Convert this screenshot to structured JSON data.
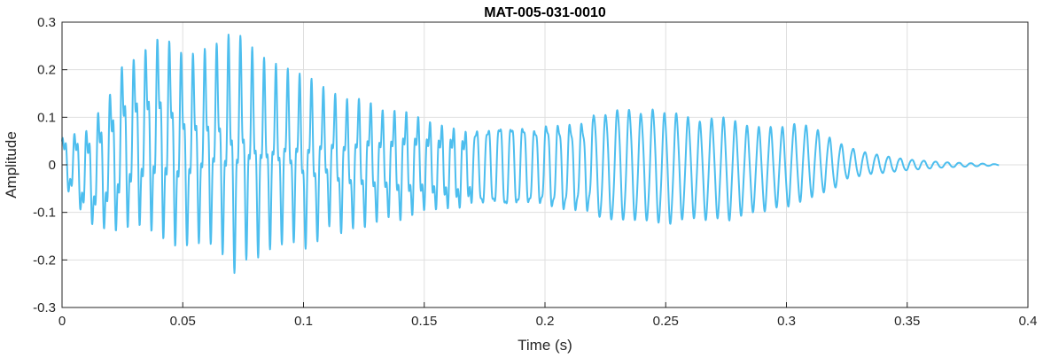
{
  "chart_data": {
    "type": "line",
    "title": "MAT-005-031-0010",
    "xlabel": "Time (s)",
    "ylabel": "Amplitude",
    "xlim": [
      0,
      0.4
    ],
    "ylim": [
      -0.3,
      0.3
    ],
    "grid": true,
    "xticks": [
      0,
      0.05,
      0.1,
      0.15,
      0.2,
      0.25,
      0.3,
      0.35,
      0.4
    ],
    "xtick_labels": [
      "0",
      "0.05",
      "0.1",
      "0.15",
      "0.2",
      "0.25",
      "0.3",
      "0.35",
      "0.4"
    ],
    "yticks": [
      -0.3,
      -0.2,
      -0.1,
      0,
      0.1,
      0.2,
      0.3
    ],
    "ytick_labels": [
      "-0.3",
      "-0.2",
      "-0.1",
      "0",
      "0.1",
      "0.2",
      "0.3"
    ],
    "series": [
      {
        "color": "#4dbeee",
        "x": [
          0,
          0.005,
          0.01,
          0.015,
          0.02,
          0.025,
          0.03,
          0.035,
          0.04,
          0.045,
          0.05,
          0.055,
          0.06,
          0.065,
          0.07,
          0.075,
          0.08,
          0.085,
          0.09,
          0.095,
          0.1,
          0.105,
          0.11,
          0.115,
          0.12,
          0.125,
          0.13,
          0.135,
          0.14,
          0.145,
          0.15,
          0.155,
          0.16,
          0.165,
          0.17,
          0.175,
          0.18,
          0.185,
          0.19,
          0.195,
          0.2,
          0.205,
          0.21,
          0.215,
          0.22,
          0.225,
          0.23,
          0.235,
          0.24,
          0.245,
          0.25,
          0.255,
          0.26,
          0.265,
          0.27,
          0.275,
          0.28,
          0.285,
          0.29,
          0.295,
          0.3,
          0.305,
          0.31,
          0.315,
          0.32,
          0.325,
          0.33,
          0.335,
          0.34,
          0.345,
          0.35,
          0.355,
          0.36,
          0.365,
          0.37,
          0.375,
          0.38,
          0.385,
          0.388
        ],
        "upper": [
          0.07,
          0.08,
          0.09,
          0.13,
          0.17,
          0.23,
          0.24,
          0.26,
          0.28,
          0.27,
          0.24,
          0.24,
          0.25,
          0.26,
          0.28,
          0.27,
          0.24,
          0.22,
          0.21,
          0.2,
          0.19,
          0.18,
          0.16,
          0.15,
          0.14,
          0.15,
          0.13,
          0.12,
          0.13,
          0.12,
          0.11,
          0.1,
          0.1,
          0.09,
          0.09,
          0.09,
          0.1,
          0.1,
          0.1,
          0.09,
          0.1,
          0.1,
          0.1,
          0.1,
          0.11,
          0.11,
          0.12,
          0.12,
          0.11,
          0.12,
          0.11,
          0.11,
          0.1,
          0.09,
          0.1,
          0.1,
          0.09,
          0.08,
          0.08,
          0.08,
          0.08,
          0.09,
          0.08,
          0.07,
          0.05,
          0.04,
          0.03,
          0.025,
          0.02,
          0.016,
          0.012,
          0.01,
          0.008,
          0.006,
          0.005,
          0.004,
          0.003,
          0.002,
          0.001
        ],
        "lower": [
          -0.06,
          -0.08,
          -0.14,
          -0.15,
          -0.16,
          -0.16,
          -0.14,
          -0.15,
          -0.16,
          -0.18,
          -0.18,
          -0.17,
          -0.17,
          -0.17,
          -0.24,
          -0.2,
          -0.2,
          -0.18,
          -0.17,
          -0.16,
          -0.18,
          -0.17,
          -0.13,
          -0.15,
          -0.14,
          -0.14,
          -0.13,
          -0.12,
          -0.13,
          -0.12,
          -0.11,
          -0.11,
          -0.11,
          -0.11,
          -0.1,
          -0.1,
          -0.1,
          -0.11,
          -0.1,
          -0.1,
          -0.1,
          -0.11,
          -0.11,
          -0.11,
          -0.11,
          -0.12,
          -0.12,
          -0.12,
          -0.12,
          -0.12,
          -0.13,
          -0.12,
          -0.11,
          -0.12,
          -0.11,
          -0.12,
          -0.11,
          -0.1,
          -0.1,
          -0.09,
          -0.09,
          -0.08,
          -0.07,
          -0.06,
          -0.05,
          -0.03,
          -0.025,
          -0.02,
          -0.018,
          -0.015,
          -0.012,
          -0.01,
          -0.008,
          -0.006,
          -0.005,
          -0.004,
          -0.003,
          -0.002,
          -0.001
        ]
      }
    ]
  }
}
